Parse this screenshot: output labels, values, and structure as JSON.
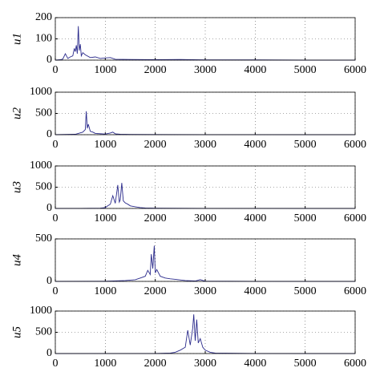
{
  "chart_data": [
    {
      "type": "line",
      "ylabel": "u1",
      "color": "#2b2b8c",
      "grid": true,
      "x": [
        0,
        100,
        150,
        200,
        250,
        300,
        350,
        380,
        400,
        420,
        440,
        460,
        480,
        500,
        520,
        550,
        600,
        700,
        800,
        900,
        1000,
        1100,
        1200,
        1500,
        2000,
        2500,
        3000,
        4000,
        5000,
        6000
      ],
      "values": [
        0,
        2,
        5,
        30,
        8,
        15,
        20,
        55,
        40,
        70,
        30,
        160,
        45,
        75,
        20,
        35,
        25,
        12,
        15,
        8,
        10,
        12,
        4,
        3,
        2,
        3,
        1,
        1,
        0,
        0
      ],
      "xlim": [
        0,
        6000
      ],
      "ylim": [
        0,
        200
      ],
      "xticks": [
        0,
        1000,
        2000,
        3000,
        4000,
        5000,
        6000
      ],
      "yticks": [
        0,
        100,
        200
      ]
    },
    {
      "type": "line",
      "ylabel": "u2",
      "color": "#2b2b8c",
      "grid": true,
      "x": [
        0,
        200,
        400,
        550,
        600,
        620,
        640,
        660,
        700,
        750,
        800,
        1000,
        1100,
        1150,
        1200,
        1300,
        1500,
        2000,
        3000,
        4000,
        5000,
        6000
      ],
      "values": [
        0,
        5,
        10,
        60,
        120,
        550,
        150,
        250,
        80,
        60,
        30,
        15,
        40,
        60,
        20,
        10,
        5,
        3,
        2,
        1,
        0,
        0
      ],
      "xlim": [
        0,
        6000
      ],
      "ylim": [
        0,
        1000
      ],
      "xticks": [
        0,
        1000,
        2000,
        3000,
        4000,
        5000,
        6000
      ],
      "yticks": [
        0,
        500,
        1000
      ]
    },
    {
      "type": "line",
      "ylabel": "u3",
      "color": "#2b2b8c",
      "grid": true,
      "x": [
        0,
        500,
        900,
        1000,
        1050,
        1100,
        1150,
        1200,
        1250,
        1280,
        1300,
        1330,
        1360,
        1400,
        1450,
        1500,
        1600,
        1700,
        1800,
        2000,
        2500,
        3000,
        4000,
        5000,
        6000
      ],
      "values": [
        0,
        2,
        5,
        20,
        60,
        100,
        300,
        120,
        550,
        150,
        200,
        600,
        180,
        130,
        100,
        60,
        40,
        20,
        10,
        5,
        3,
        2,
        1,
        0,
        0
      ],
      "xlim": [
        0,
        6000
      ],
      "ylim": [
        0,
        1000
      ],
      "xticks": [
        0,
        1000,
        2000,
        3000,
        4000,
        5000,
        6000
      ],
      "yticks": [
        0,
        500,
        1000
      ]
    },
    {
      "type": "line",
      "ylabel": "u4",
      "color": "#2b2b8c",
      "grid": true,
      "x": [
        0,
        1000,
        1400,
        1600,
        1700,
        1800,
        1850,
        1900,
        1920,
        1950,
        1980,
        2000,
        2030,
        2100,
        2200,
        2300,
        2400,
        2600,
        2800,
        2900,
        3000,
        4000,
        5000,
        6000
      ],
      "values": [
        0,
        2,
        10,
        20,
        40,
        60,
        130,
        80,
        320,
        150,
        420,
        100,
        140,
        60,
        40,
        30,
        25,
        10,
        5,
        20,
        3,
        1,
        0,
        0
      ],
      "xlim": [
        0,
        6000
      ],
      "ylim": [
        0,
        500
      ],
      "xticks": [
        0,
        1000,
        2000,
        3000,
        4000,
        5000,
        6000
      ],
      "yticks": [
        0,
        500
      ]
    },
    {
      "type": "line",
      "ylabel": "u5",
      "color": "#2b2b8c",
      "grid": true,
      "x": [
        0,
        2000,
        2300,
        2400,
        2500,
        2600,
        2650,
        2700,
        2750,
        2770,
        2800,
        2830,
        2860,
        2900,
        2950,
        3000,
        3100,
        3200,
        4000,
        5000,
        6000
      ],
      "values": [
        0,
        2,
        10,
        30,
        80,
        150,
        550,
        200,
        600,
        920,
        300,
        800,
        250,
        350,
        150,
        80,
        30,
        10,
        2,
        0,
        0
      ],
      "xlim": [
        0,
        6000
      ],
      "ylim": [
        0,
        1000
      ],
      "xticks": [
        0,
        1000,
        2000,
        3000,
        4000,
        5000,
        6000
      ],
      "yticks": [
        0,
        500,
        1000
      ]
    }
  ]
}
